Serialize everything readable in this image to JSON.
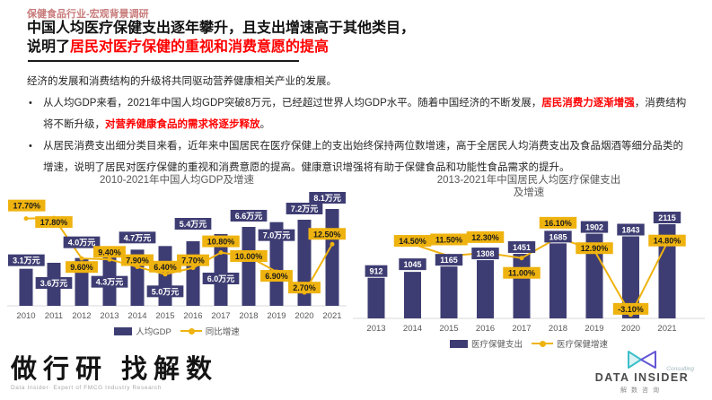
{
  "colors": {
    "navy": "#3e3d73",
    "yellow": "#efb310",
    "red": "#ff0000",
    "kicker_red": "#c97b7b",
    "axis_gray": "#595959",
    "teal": "#3bbfc9",
    "purple": "#6456d6"
  },
  "header": {
    "kicker": "保健食品行业-宏观背景调研",
    "title_line1": "中国人均医疗保健支出逐年攀升，且支出增速高于其他类目，",
    "title_line2_black": "说明了",
    "title_line2_red": "居民对医疗保健的重视和消费意愿的提高"
  },
  "body": {
    "intro": "经济的发展和消费结构的升级将共同驱动营养健康相关产业的发展。",
    "bullets": [
      {
        "segments": [
          {
            "text": "从人均GDP来看，2021年中国人均GDP突破8万元，已经超过世界人均GDP水平。随着中国经济的不断发展，",
            "red": false
          },
          {
            "text": "居民消费力逐渐增强",
            "red": true
          },
          {
            "text": "，消费结构将不断升级，",
            "red": false
          },
          {
            "text": "对营养健康食品的需求将逐步释放",
            "red": true
          },
          {
            "text": "。",
            "red": false
          }
        ]
      },
      {
        "segments": [
          {
            "text": "从居民消费支出细分类目来看，近年来中国居民在医疗保健上的支出始终保持两位数增速，高于全居民人均消费支出及食品烟酒等细分品类的增速，说明了居民对医疗保健的重视和消费意愿的提高。健康意识增强将有助于保健食品和功能性食品需求的提升。",
            "red": false
          }
        ]
      }
    ]
  },
  "chart_data": [
    {
      "type": "bar+line",
      "title": "2010-2021年中国人均GDP及增速",
      "categories": [
        "2010",
        "2011",
        "2012",
        "2013",
        "2014",
        "2015",
        "2016",
        "2017",
        "2018",
        "2019",
        "2020",
        "2021"
      ],
      "series": [
        {
          "name": "人均GDP",
          "type": "bar",
          "unit": "万元",
          "values": [
            3.1,
            3.6,
            4.0,
            4.3,
            4.7,
            5.0,
            5.4,
            6.0,
            6.6,
            7.0,
            7.2,
            8.1
          ],
          "labels": [
            "3.1万元",
            "3.6万元",
            "4.0万元",
            "4.3万元",
            "4.7万元",
            "5.0万元",
            "5.4万元",
            "6.0万元",
            "6.6万元",
            "7.0万元",
            "7.2万元",
            "8.1万元"
          ]
        },
        {
          "name": "同比增速",
          "type": "line",
          "unit": "%",
          "values": [
            17.7,
            17.8,
            9.6,
            9.4,
            7.9,
            6.4,
            7.7,
            10.8,
            10.0,
            6.9,
            2.7,
            12.5
          ],
          "labels": [
            "17.70%",
            "17.80%",
            "9.60%",
            "9.40%",
            "7.90%",
            "6.40%",
            "7.70%",
            "10.80%",
            "10.00%",
            "6.90%",
            "2.70%",
            "12.50%"
          ]
        }
      ],
      "legend_position": "bottom",
      "grid": false
    },
    {
      "type": "bar+line",
      "title": "2013-2021年中国居民人均医疗保健支出及增速",
      "categories": [
        "2013",
        "2014",
        "2015",
        "2016",
        "2017",
        "2018",
        "2019",
        "2020",
        "2021"
      ],
      "series": [
        {
          "name": "医疗保健支出",
          "type": "bar",
          "unit": "元",
          "values": [
            912,
            1045,
            1165,
            1308,
            1451,
            1685,
            1902,
            1843,
            2115
          ],
          "labels": [
            "912",
            "1045",
            "1165",
            "1308",
            "1451",
            "1685",
            "1902",
            "1843",
            "2115"
          ]
        },
        {
          "name": "医疗保健增速",
          "type": "line",
          "unit": "%",
          "values": [
            null,
            14.5,
            11.5,
            12.3,
            11.0,
            16.1,
            12.9,
            -3.1,
            14.8
          ],
          "labels": [
            null,
            "14.50%",
            "11.50%",
            "12.30%",
            "11.00%",
            "16.10%",
            "12.90%",
            "-3.10%",
            "14.80%"
          ]
        }
      ],
      "legend_position": "bottom",
      "grid": false
    }
  ],
  "footer": {
    "logo_cn": "做行研 找解数",
    "logo_sub": "Data Insider· Expert of FMCG Industry Research",
    "brand_name": "DATA INSIDER",
    "brand_consulting": "Consulting",
    "brand_cn": "解数咨询"
  }
}
